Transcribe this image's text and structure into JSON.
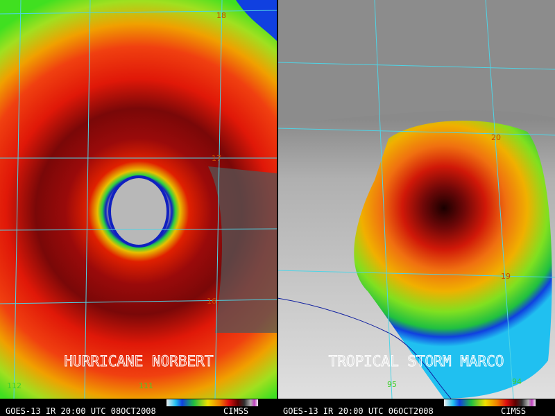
{
  "panels": [
    {
      "title": "HURRICANE NORBERT",
      "caption": "GOES-13 IR 20:00 UTC 08OCT2008",
      "credit": "CIMSS",
      "lat_labels": [
        "18",
        "17",
        "16"
      ],
      "lon_labels": [
        "112",
        "111"
      ]
    },
    {
      "title": "TROPICAL STORM MARCO",
      "caption": "GOES-13 IR 20:00 UTC 06OCT2008",
      "credit": "CIMSS",
      "lat_labels": [
        "20",
        "19"
      ],
      "lon_labels": [
        "95",
        "94"
      ]
    }
  ]
}
